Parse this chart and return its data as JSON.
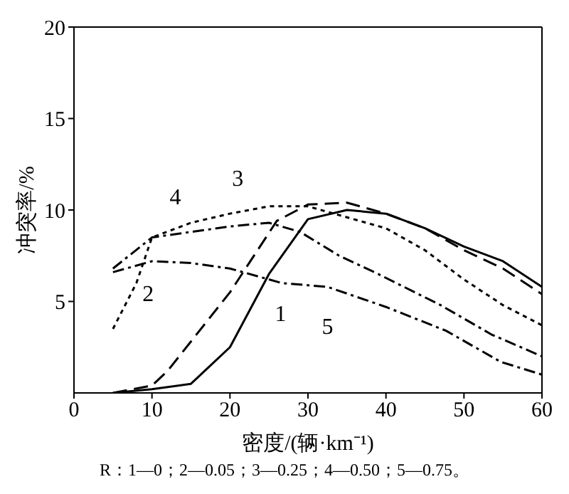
{
  "chart_data": {
    "type": "line",
    "xlabel": "密度/(辆·km⁻¹)",
    "ylabel": "冲突率/%",
    "xlim": [
      0,
      60
    ],
    "ylim": [
      0,
      20
    ],
    "xticks": [
      0,
      10,
      20,
      30,
      40,
      50,
      60
    ],
    "yticks": [
      5,
      10,
      15,
      20
    ],
    "marker": "none",
    "series": [
      {
        "color": "#000000",
        "line_style": "solid",
        "x": [
          5,
          10,
          15,
          20,
          25,
          30,
          35,
          40,
          45,
          50,
          55,
          60
        ],
        "values": [
          0,
          0.2,
          0.5,
          2.5,
          6.5,
          9.5,
          10,
          9.8,
          9,
          8,
          7.2,
          5.8
        ]
      },
      {
        "color": "#000000",
        "line_style": "dashed",
        "x": [
          5,
          10,
          12,
          20,
          26,
          30,
          35,
          40,
          45,
          50,
          55,
          60
        ],
        "values": [
          0,
          0.4,
          1.2,
          5.5,
          9.4,
          10.3,
          10.4,
          9.8,
          9,
          7.8,
          6.8,
          5.4
        ]
      },
      {
        "color": "#000000",
        "line_style": "dotted",
        "x": [
          5,
          8,
          10,
          15,
          20,
          25,
          30,
          35,
          40,
          45,
          50,
          55,
          60
        ],
        "values": [
          3.5,
          6,
          8.5,
          9.3,
          9.8,
          10.2,
          10.2,
          9.6,
          9,
          7.8,
          6.2,
          4.8,
          3.7
        ]
      },
      {
        "color": "#000000",
        "line_style": "dashdot",
        "x": [
          5,
          10,
          15,
          20,
          25,
          29,
          34,
          39,
          47,
          53.5,
          60
        ],
        "values": [
          6.8,
          8.5,
          8.8,
          9.1,
          9.3,
          8.8,
          7.5,
          6.5,
          4.8,
          3.2,
          2.0
        ]
      },
      {
        "color": "#000000",
        "line_style": "dashdot",
        "x": [
          5,
          10,
          15,
          20,
          26.7,
          32.5,
          40,
          47.7,
          54.7,
          60
        ],
        "values": [
          6.6,
          7.2,
          7.1,
          6.8,
          6.0,
          5.8,
          4.7,
          3.4,
          1.7,
          1.0
        ]
      }
    ],
    "annotations": [
      {
        "text": "1",
        "x": 26.5,
        "y": 4.2
      },
      {
        "text": "2",
        "x": 9.5,
        "y": 5.3
      },
      {
        "text": "3",
        "x": 21,
        "y": 11.6
      },
      {
        "text": "4",
        "x": 13,
        "y": 10.6
      },
      {
        "text": "5",
        "x": 32.5,
        "y": 3.5
      },
      "R：1—0；2—0.05；3—0.25；4—0.50；5—0.75。"
    ]
  }
}
